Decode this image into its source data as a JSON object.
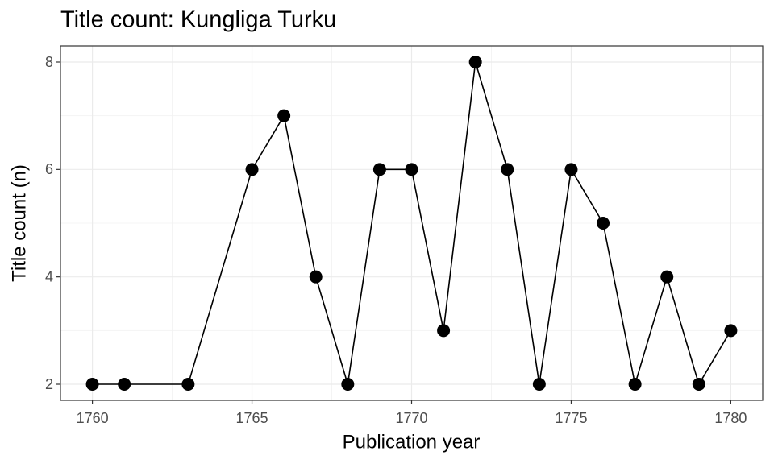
{
  "chart_data": {
    "type": "line",
    "title": "Title count: Kungliga Turku",
    "x_label": "Publication year",
    "y_label": "Title count (n)",
    "x": [
      1760,
      1761,
      1763,
      1765,
      1766,
      1767,
      1768,
      1769,
      1770,
      1771,
      1772,
      1773,
      1774,
      1775,
      1776,
      1777,
      1778,
      1779,
      1780
    ],
    "values": [
      2,
      2,
      2,
      6,
      7,
      4,
      2,
      6,
      6,
      3,
      8,
      6,
      2,
      6,
      5,
      2,
      4,
      2,
      3
    ],
    "color": "#000000",
    "xlim": [
      1759,
      1781
    ],
    "xticks": [
      1760,
      1765,
      1770,
      1775,
      1780
    ],
    "x_minor_ticks": [
      1762.5,
      1767.5,
      1772.5,
      1777.5
    ],
    "ylim": [
      1.7,
      8.3
    ],
    "yticks": [
      2,
      4,
      6,
      8
    ],
    "y_minor_ticks": [
      3,
      5,
      7
    ],
    "grid": true
  }
}
